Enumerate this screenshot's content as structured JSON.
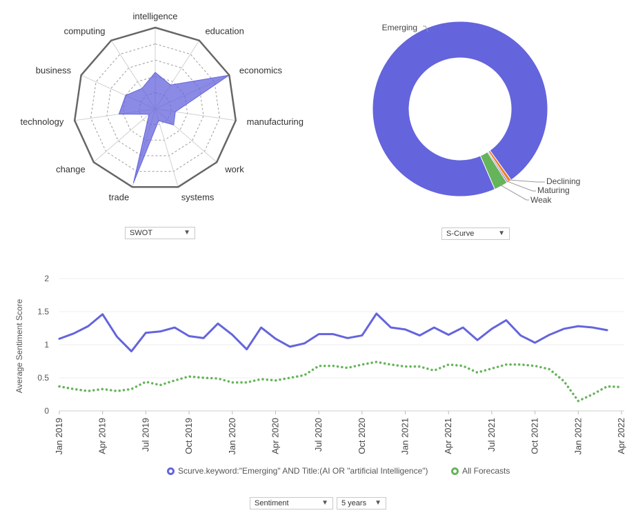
{
  "colors": {
    "series1": "#6464dd",
    "series2": "#66b45a",
    "declining": "#f07f2a",
    "axis_gray": "#666666"
  },
  "controls": {
    "radar_select": "SWOT",
    "donut_select": "S-Curve",
    "metric_select": "Sentiment",
    "range_select": "5 years"
  },
  "chart_data": [
    {
      "type": "radar",
      "axes": [
        "intelligence",
        "education",
        "economics",
        "manufacturing",
        "work",
        "systems",
        "trade",
        "change",
        "technology",
        "business",
        "computing"
      ],
      "values": [
        0.45,
        0.35,
        1.0,
        0.25,
        0.3,
        0.15,
        0.95,
        0.1,
        0.45,
        0.4,
        0.3
      ],
      "range": [
        0,
        1
      ],
      "grid_rings": 5
    },
    {
      "type": "pie",
      "donut": true,
      "slices": [
        {
          "label": "Emerging",
          "value": 96.6,
          "color": "#6464dd"
        },
        {
          "label": "Declining",
          "value": 0.6,
          "color": "#f07f2a"
        },
        {
          "label": "Maturing",
          "value": 0.3,
          "color": "#9a6bd0"
        },
        {
          "label": "Weak",
          "value": 2.5,
          "color": "#66b45a"
        }
      ]
    },
    {
      "type": "line",
      "ylabel": "Average Sentiment Score",
      "ylim": [
        0,
        2
      ],
      "yticks": [
        0,
        0.5,
        1,
        1.5,
        2
      ],
      "xticks": [
        "Jan 2019",
        "Apr 2019",
        "Jul 2019",
        "Oct 2019",
        "Jan 2020",
        "Apr 2020",
        "Jul 2020",
        "Oct 2020",
        "Jan 2021",
        "Apr 2021",
        "Jul 2021",
        "Oct 2021",
        "Jan 2022",
        "Apr 2022"
      ],
      "x": [
        "2019-01",
        "2019-02",
        "2019-03",
        "2019-04",
        "2019-05",
        "2019-06",
        "2019-07",
        "2019-08",
        "2019-09",
        "2019-10",
        "2019-11",
        "2019-12",
        "2020-01",
        "2020-02",
        "2020-03",
        "2020-04",
        "2020-05",
        "2020-06",
        "2020-07",
        "2020-08",
        "2020-09",
        "2020-10",
        "2020-11",
        "2020-12",
        "2021-01",
        "2021-02",
        "2021-03",
        "2021-04",
        "2021-05",
        "2021-06",
        "2021-07",
        "2021-08",
        "2021-09",
        "2021-10",
        "2021-11",
        "2021-12",
        "2022-01",
        "2022-02",
        "2022-03",
        "2022-04"
      ],
      "series": [
        {
          "name": "Scurve.keyword:\"Emerging\" AND Title:(AI OR \"artificial Intelligence\")",
          "style": "solid",
          "values": [
            1.09,
            1.17,
            1.28,
            1.46,
            1.12,
            0.9,
            1.18,
            1.2,
            1.26,
            1.13,
            1.1,
            1.32,
            1.15,
            0.93,
            1.26,
            1.09,
            0.97,
            1.02,
            1.16,
            1.16,
            1.1,
            1.14,
            1.47,
            1.26,
            1.23,
            1.14,
            1.26,
            1.15,
            1.26,
            1.07,
            1.24,
            1.37,
            1.14,
            1.03,
            1.15,
            1.24,
            1.28,
            1.26,
            1.22,
            null
          ]
        },
        {
          "name": "All Forecasts",
          "style": "dotted",
          "values": [
            0.37,
            0.33,
            0.3,
            0.33,
            0.3,
            0.33,
            0.44,
            0.39,
            0.46,
            0.52,
            0.5,
            0.49,
            0.43,
            0.43,
            0.48,
            0.46,
            0.5,
            0.54,
            0.68,
            0.68,
            0.65,
            0.7,
            0.74,
            0.7,
            0.67,
            0.67,
            0.61,
            0.7,
            0.68,
            0.58,
            0.64,
            0.7,
            0.7,
            0.68,
            0.63,
            0.45,
            0.15,
            0.25,
            0.37,
            0.36
          ]
        }
      ]
    }
  ]
}
